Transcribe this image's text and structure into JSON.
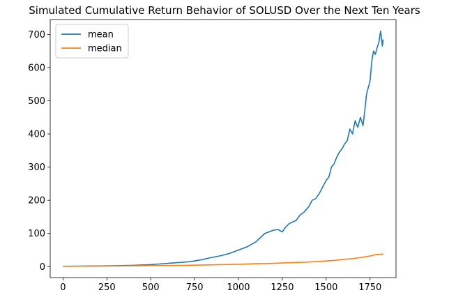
{
  "chart_data": {
    "type": "line",
    "title": "Simulated Cumulative Return Behavior of SOLUSD Over the Next Ten Years",
    "xlabel": "",
    "ylabel": "",
    "xlim": [
      -73,
      1898
    ],
    "ylim": [
      -33,
      745
    ],
    "x_ticks": [
      0,
      250,
      500,
      750,
      1000,
      1250,
      1500,
      1750
    ],
    "y_ticks": [
      0,
      100,
      200,
      300,
      400,
      500,
      600,
      700
    ],
    "grid": false,
    "legend_position": "top-left",
    "series": [
      {
        "name": "mean",
        "color": "#1f77b4",
        "x": [
          0,
          100,
          200,
          300,
          400,
          500,
          550,
          600,
          650,
          700,
          750,
          800,
          850,
          900,
          950,
          1000,
          1050,
          1100,
          1150,
          1200,
          1225,
          1250,
          1270,
          1290,
          1310,
          1330,
          1350,
          1375,
          1400,
          1420,
          1440,
          1460,
          1480,
          1500,
          1515,
          1530,
          1545,
          1560,
          1575,
          1590,
          1605,
          1620,
          1635,
          1650,
          1665,
          1680,
          1695,
          1710,
          1720,
          1730,
          1740,
          1750,
          1760,
          1770,
          1780,
          1790,
          1800,
          1810,
          1815,
          1820,
          1825
        ],
        "y": [
          1,
          1.5,
          2,
          3,
          4,
          6,
          8,
          10,
          12,
          14,
          17,
          22,
          28,
          33,
          40,
          50,
          60,
          75,
          100,
          110,
          112,
          105,
          120,
          130,
          135,
          140,
          155,
          165,
          180,
          200,
          205,
          220,
          240,
          260,
          270,
          300,
          310,
          330,
          345,
          355,
          370,
          380,
          415,
          400,
          440,
          420,
          450,
          425,
          470,
          520,
          540,
          560,
          620,
          650,
          640,
          660,
          675,
          710,
          690,
          665,
          685
        ]
      },
      {
        "name": "median",
        "color": "#ff7f0e",
        "x": [
          0,
          100,
          200,
          300,
          400,
          500,
          600,
          700,
          800,
          900,
          1000,
          1100,
          1200,
          1300,
          1400,
          1500,
          1550,
          1600,
          1650,
          1700,
          1750,
          1780,
          1800,
          1825
        ],
        "y": [
          1,
          1.2,
          1.5,
          2,
          2.5,
          3,
          3.5,
          4,
          5,
          6,
          7,
          9,
          10,
          12,
          14,
          17,
          19,
          22,
          24,
          28,
          32,
          36,
          37,
          38
        ]
      }
    ]
  }
}
